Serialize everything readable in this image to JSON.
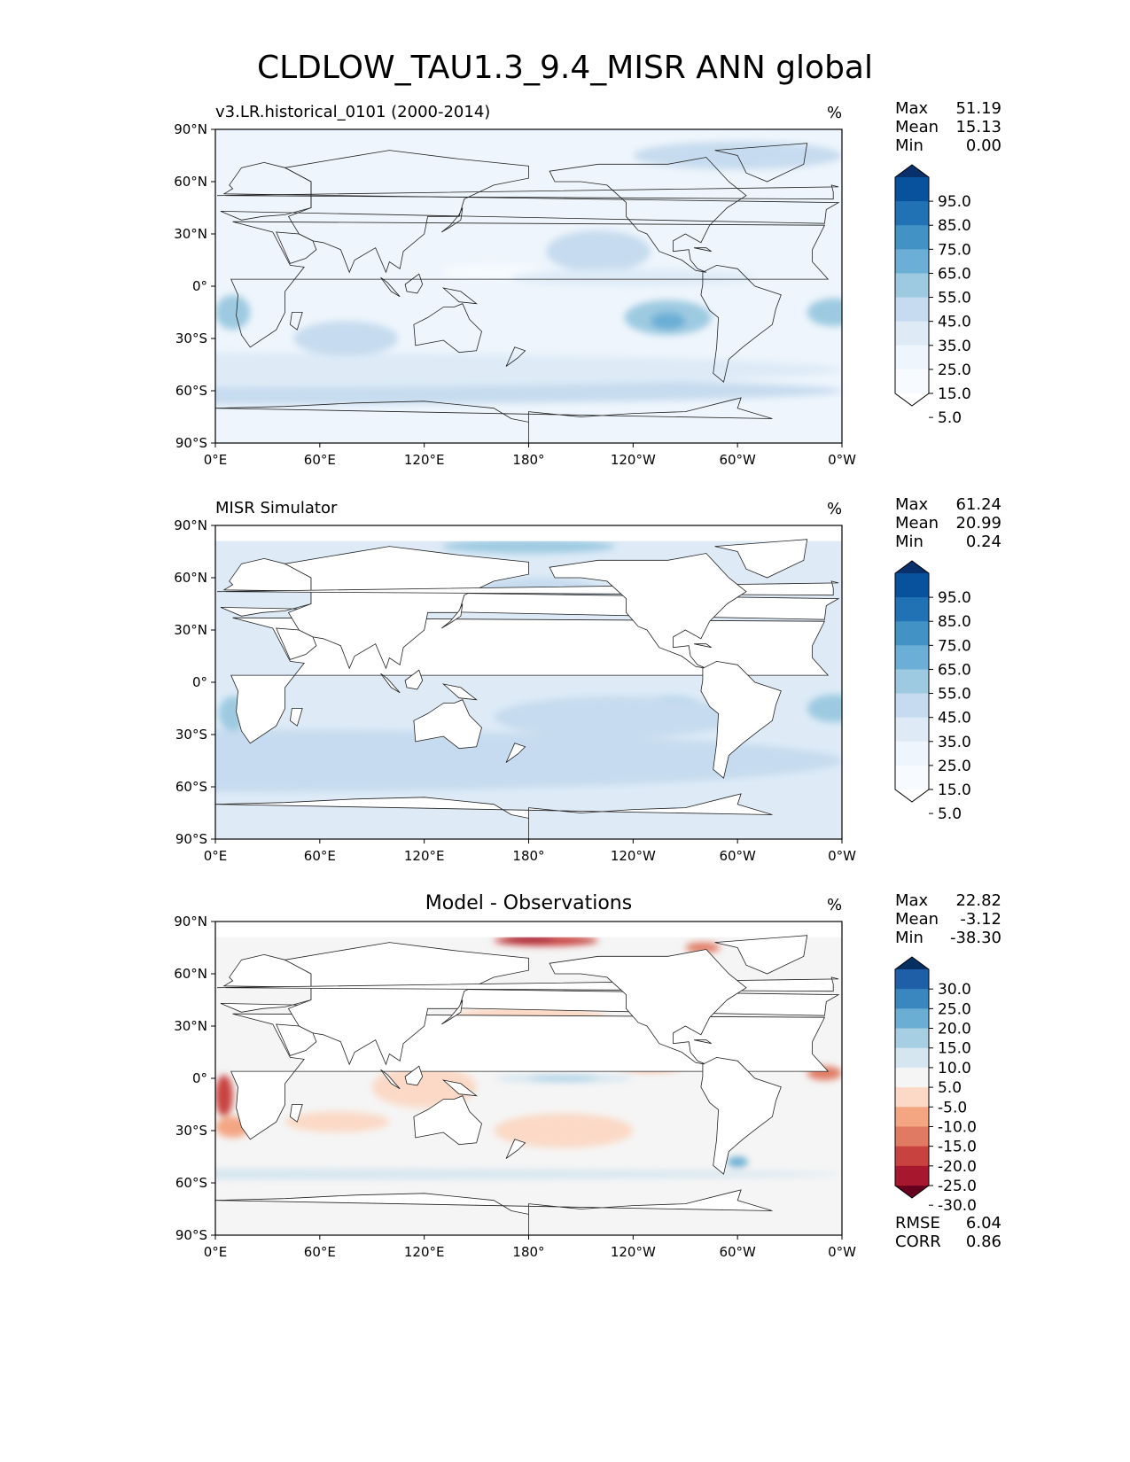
{
  "figure": {
    "title": "CLDLOW_TAU1.3_9.4_MISR ANN global"
  },
  "chart_data": [
    {
      "type": "heatmap",
      "panel": "test",
      "title": "",
      "subtitle": "v3.LR.historical_0101 (2000-2014)",
      "units": "%",
      "xlabel": "",
      "ylabel": "",
      "xlim": [
        0,
        360
      ],
      "ylim": [
        -90,
        90
      ],
      "x_ticks": [
        "0°E",
        "60°E",
        "120°E",
        "180°",
        "120°W",
        "60°W",
        "0°W"
      ],
      "y_ticks": [
        "90°N",
        "60°N",
        "30°N",
        "0°",
        "30°S",
        "60°S",
        "90°S"
      ],
      "stats": [
        {
          "label": "Max",
          "value": "51.19"
        },
        {
          "label": "Mean",
          "value": "15.13"
        },
        {
          "label": "Min",
          "value": "0.00"
        }
      ],
      "colorbar": {
        "labels": [
          "95.0",
          "85.0",
          "75.0",
          "65.0",
          "55.0",
          "45.0",
          "35.0",
          "25.0",
          "15.0",
          "5.0"
        ],
        "colors": [
          "#08306b",
          "#08519c",
          "#2171b5",
          "#4292c6",
          "#6baed6",
          "#9ecae1",
          "#c6dbef",
          "#deebf7",
          "#eef5fc",
          "#f7fbff",
          "#ffffff"
        ],
        "extend": "both"
      },
      "grid": false
    },
    {
      "type": "heatmap",
      "panel": "reference",
      "title": "",
      "subtitle": "MISR Simulator",
      "units": "%",
      "xlabel": "",
      "ylabel": "",
      "xlim": [
        0,
        360
      ],
      "ylim": [
        -90,
        90
      ],
      "x_ticks": [
        "0°E",
        "60°E",
        "120°E",
        "180°",
        "120°W",
        "60°W",
        "0°W"
      ],
      "y_ticks": [
        "90°N",
        "60°N",
        "30°N",
        "0°",
        "30°S",
        "60°S",
        "90°S"
      ],
      "stats": [
        {
          "label": "Max",
          "value": "61.24"
        },
        {
          "label": "Mean",
          "value": "20.99"
        },
        {
          "label": "Min",
          "value": "0.24"
        }
      ],
      "colorbar": {
        "labels": [
          "95.0",
          "85.0",
          "75.0",
          "65.0",
          "55.0",
          "45.0",
          "35.0",
          "25.0",
          "15.0",
          "5.0"
        ],
        "colors": [
          "#08306b",
          "#08519c",
          "#2171b5",
          "#4292c6",
          "#6baed6",
          "#9ecae1",
          "#c6dbef",
          "#deebf7",
          "#eef5fc",
          "#f7fbff",
          "#ffffff"
        ],
        "extend": "both"
      },
      "grid": false
    },
    {
      "type": "heatmap",
      "panel": "difference",
      "title": "Model - Observations",
      "subtitle": "",
      "units": "%",
      "xlabel": "",
      "ylabel": "",
      "xlim": [
        0,
        360
      ],
      "ylim": [
        -90,
        90
      ],
      "x_ticks": [
        "0°E",
        "60°E",
        "120°E",
        "180°",
        "120°W",
        "60°W",
        "0°W"
      ],
      "y_ticks": [
        "90°N",
        "60°N",
        "30°N",
        "0°",
        "30°S",
        "60°S",
        "90°S"
      ],
      "stats": [
        {
          "label": "Max",
          "value": "22.82"
        },
        {
          "label": "Mean",
          "value": "-3.12"
        },
        {
          "label": "Min",
          "value": "-38.30"
        }
      ],
      "metrics": [
        {
          "label": "RMSE",
          "value": "6.04"
        },
        {
          "label": "CORR",
          "value": "0.86"
        }
      ],
      "colorbar": {
        "labels": [
          "30.0",
          "25.0",
          "20.0",
          "15.0",
          "10.0",
          "5.0",
          "-5.0",
          "-10.0",
          "-15.0",
          "-20.0",
          "-25.0",
          "-30.0"
        ],
        "colors": [
          "#053061",
          "#1f5fa8",
          "#3a87c0",
          "#6aaed3",
          "#a7cfe4",
          "#d5e6f0",
          "#f5f5f5",
          "#fbd9c6",
          "#f4a582",
          "#e07a62",
          "#c8423f",
          "#a7182e",
          "#67001f"
        ],
        "extend": "both"
      },
      "grid": false
    }
  ]
}
